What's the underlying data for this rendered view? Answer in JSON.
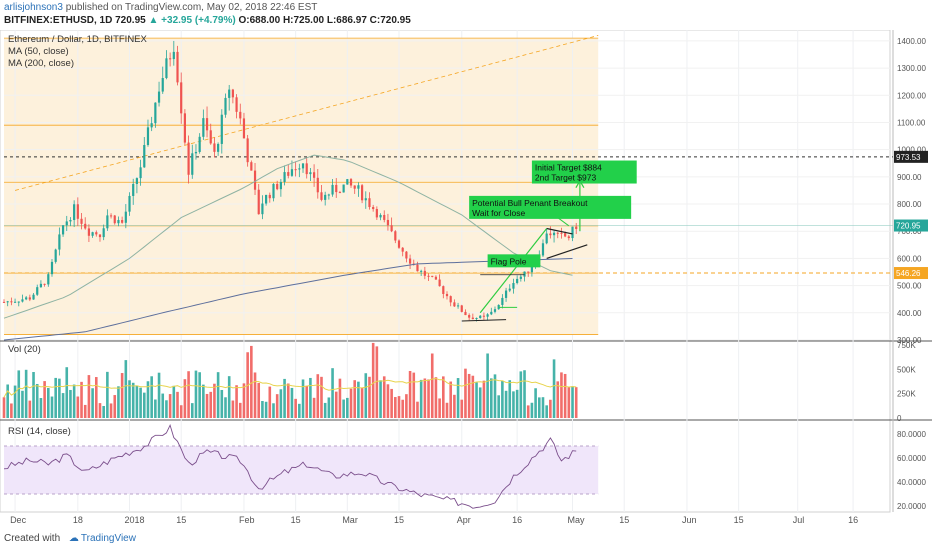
{
  "header": {
    "author": "arlisjohnson3",
    "published": "published on TradingView.com, May 02, 2018 22:46 EST",
    "symbol_line": "BITFINEX:ETHUSD, 1D 720.95",
    "change": "▲ +32.95 (+4.79%)",
    "ohlc": "O:688.00 H:725.00 L:686.97 C:720.95"
  },
  "footer": {
    "created_with": "Created with",
    "brand": "TradingView"
  },
  "colors": {
    "up": "#26a69a",
    "down": "#ef5350",
    "ma50": "#8fb3a3",
    "ma200": "#5d6f9c",
    "zone": "#fdf1dc",
    "orange": "#f5a623",
    "rsi": "#7b4f8c",
    "rsi_band": "#f0e6fa"
  },
  "chart_data": {
    "type": "candlestick",
    "legend": {
      "title": "Ethereum / Dollar, 1D, BITFINEX",
      "ma50": "MA (50, close)",
      "ma200": "MA (200, close)"
    },
    "price_axis": {
      "ticks": [
        "1400.00",
        "1300.00",
        "1200.00",
        "1100.00",
        "1000.00",
        "900.00",
        "800.00",
        "700.00",
        "600.00",
        "500.00",
        "400.00",
        "300.00"
      ],
      "tick_values": [
        1400,
        1300,
        1200,
        1100,
        1000,
        900,
        800,
        700,
        600,
        500,
        400,
        300
      ],
      "min": 300,
      "max": 1440
    },
    "badges": [
      {
        "text": "973.53",
        "value": 973.53,
        "style": "dark"
      },
      {
        "text": "720.95",
        "value": 720.95,
        "style": "green"
      },
      {
        "text": "546.26",
        "value": 546.26,
        "style": "orange"
      }
    ],
    "time_axis": [
      {
        "label": "Dec",
        "t": "2017-12-01"
      },
      {
        "label": "18",
        "t": "2017-12-18"
      },
      {
        "label": "2018",
        "t": "2018-01-01"
      },
      {
        "label": "15",
        "t": "2018-01-15"
      },
      {
        "label": "Feb",
        "t": "2018-02-01"
      },
      {
        "label": "15",
        "t": "2018-02-15"
      },
      {
        "label": "Mar",
        "t": "2018-03-01"
      },
      {
        "label": "15",
        "t": "2018-03-15"
      },
      {
        "label": "Apr",
        "t": "2018-04-01"
      },
      {
        "label": "16",
        "t": "2018-04-16"
      },
      {
        "label": "May",
        "t": "2018-05-01"
      },
      {
        "label": "15",
        "t": "2018-05-15"
      },
      {
        "label": "Jun",
        "t": "2018-06-01"
      },
      {
        "label": "15",
        "t": "2018-06-15"
      },
      {
        "label": "Jul",
        "t": "2018-07-01"
      },
      {
        "label": "16",
        "t": "2018-07-16"
      }
    ],
    "price_keys": [
      [
        "2017-11-28",
        440
      ],
      [
        "2017-12-05",
        455
      ],
      [
        "2017-12-10",
        530
      ],
      [
        "2017-12-14",
        720
      ],
      [
        "2017-12-17",
        780
      ],
      [
        "2017-12-21",
        700
      ],
      [
        "2017-12-24",
        690
      ],
      [
        "2017-12-26",
        760
      ],
      [
        "2017-12-30",
        730
      ],
      [
        "2018-01-04",
        940
      ],
      [
        "2018-01-09",
        1230
      ],
      [
        "2018-01-13",
        1390
      ],
      [
        "2018-01-17",
        920
      ],
      [
        "2018-01-21",
        1100
      ],
      [
        "2018-01-24",
        980
      ],
      [
        "2018-01-28",
        1230
      ],
      [
        "2018-01-31",
        1110
      ],
      [
        "2018-02-05",
        770
      ],
      [
        "2018-02-06",
        810
      ],
      [
        "2018-02-10",
        870
      ],
      [
        "2018-02-14",
        930
      ],
      [
        "2018-02-17",
        960
      ],
      [
        "2018-02-22",
        820
      ],
      [
        "2018-02-25",
        850
      ],
      [
        "2018-03-01",
        870
      ],
      [
        "2018-03-04",
        850
      ],
      [
        "2018-03-09",
        770
      ],
      [
        "2018-03-13",
        690
      ],
      [
        "2018-03-17",
        610
      ],
      [
        "2018-03-20",
        560
      ],
      [
        "2018-03-25",
        510
      ],
      [
        "2018-03-30",
        430
      ],
      [
        "2018-04-03",
        385
      ],
      [
        "2018-04-07",
        380
      ],
      [
        "2018-04-09",
        400
      ],
      [
        "2018-04-12",
        450
      ],
      [
        "2018-04-15",
        520
      ],
      [
        "2018-04-18",
        540
      ],
      [
        "2018-04-21",
        600
      ],
      [
        "2018-04-23",
        650
      ],
      [
        "2018-04-24",
        700
      ],
      [
        "2018-04-27",
        680
      ],
      [
        "2018-04-30",
        680
      ],
      [
        "2018-05-02",
        720.95
      ]
    ],
    "ma50_keys": [
      [
        "2017-11-28",
        380
      ],
      [
        "2017-12-15",
        460
      ],
      [
        "2018-01-01",
        600
      ],
      [
        "2018-01-15",
        750
      ],
      [
        "2018-02-01",
        860
      ],
      [
        "2018-02-10",
        930
      ],
      [
        "2018-02-20",
        980
      ],
      [
        "2018-03-01",
        960
      ],
      [
        "2018-03-15",
        880
      ],
      [
        "2018-04-01",
        760
      ],
      [
        "2018-04-15",
        620
      ],
      [
        "2018-04-25",
        555
      ],
      [
        "2018-05-02",
        535
      ]
    ],
    "ma200_keys": [
      [
        "2017-11-28",
        300
      ],
      [
        "2017-12-20",
        330
      ],
      [
        "2018-01-10",
        400
      ],
      [
        "2018-02-01",
        470
      ],
      [
        "2018-03-01",
        540
      ],
      [
        "2018-03-20",
        580
      ],
      [
        "2018-04-10",
        590
      ],
      [
        "2018-05-02",
        600
      ]
    ],
    "horizontal_levels": [
      1410,
      1090,
      880,
      720,
      546,
      320
    ],
    "dashed_level": 973.53,
    "target_level": 546.26,
    "volume_axis": {
      "ticks": [
        "750K",
        "500K",
        "250K",
        "0"
      ],
      "tick_values": [
        750000,
        500000,
        250000,
        0
      ],
      "max": 780000
    },
    "volume_title": "Vol (20)",
    "rsi_axis": {
      "ticks": [
        "80.0000",
        "60.0000",
        "40.0000",
        "20.0000"
      ],
      "tick_values": [
        80,
        60,
        40,
        20
      ],
      "min": 15,
      "max": 90
    },
    "rsi_title": "RSI (14, close)",
    "rsi_band": [
      30,
      70
    ],
    "rsi_keys": [
      [
        "2017-11-28",
        52
      ],
      [
        "2017-12-05",
        58
      ],
      [
        "2017-12-10",
        55
      ],
      [
        "2017-12-15",
        62
      ],
      [
        "2017-12-20",
        48
      ],
      [
        "2017-12-28",
        60
      ],
      [
        "2018-01-05",
        70
      ],
      [
        "2018-01-12",
        85
      ],
      [
        "2018-01-17",
        55
      ],
      [
        "2018-01-22",
        65
      ],
      [
        "2018-01-31",
        58
      ],
      [
        "2018-02-05",
        35
      ],
      [
        "2018-02-12",
        48
      ],
      [
        "2018-02-18",
        55
      ],
      [
        "2018-02-25",
        45
      ],
      [
        "2018-03-05",
        48
      ],
      [
        "2018-03-12",
        38
      ],
      [
        "2018-03-20",
        30
      ],
      [
        "2018-03-28",
        25
      ],
      [
        "2018-04-05",
        20
      ],
      [
        "2018-04-10",
        25
      ],
      [
        "2018-04-15",
        45
      ],
      [
        "2018-04-20",
        60
      ],
      [
        "2018-04-25",
        75
      ],
      [
        "2018-04-28",
        58
      ],
      [
        "2018-05-02",
        66
      ]
    ],
    "annotations": {
      "targets": [
        "Initial Target $884",
        "2nd Target $973"
      ],
      "breakout": [
        "Potential Bull Penant Breakout",
        "Wait for Close"
      ],
      "flag": "Flag Pole"
    }
  }
}
